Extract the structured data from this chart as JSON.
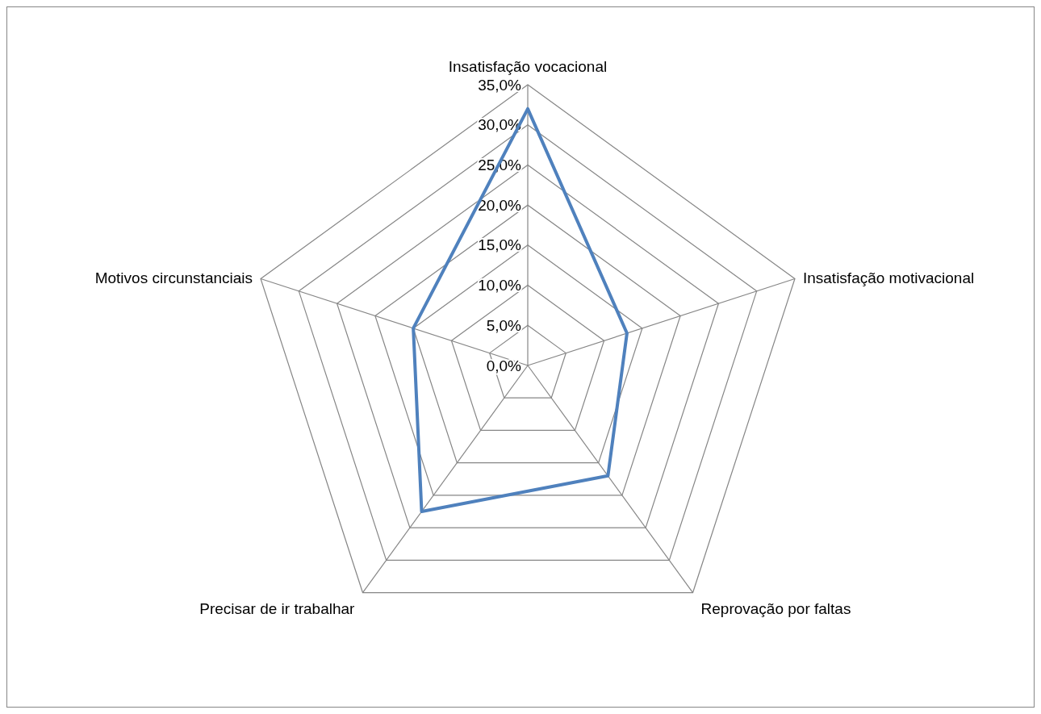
{
  "chart_data": {
    "type": "radar",
    "categories": [
      "Insatisfação vocacional",
      "Insatisfação motivacional",
      "Reprovação por faltas",
      "Precisar de ir trabalhar",
      "Motivos circunstanciais"
    ],
    "series": [
      {
        "color": "#4f81bd",
        "values": [
          32,
          13,
          17,
          22.5,
          15
        ]
      }
    ],
    "ylim": [
      0,
      35
    ],
    "yticks": [
      {
        "value": 0,
        "label": "0,0%"
      },
      {
        "value": 5,
        "label": "5,0%"
      },
      {
        "value": 10,
        "label": "10,0%"
      },
      {
        "value": 15,
        "label": "15,0%"
      },
      {
        "value": 20,
        "label": "20,0%"
      },
      {
        "value": 25,
        "label": "25,0%"
      },
      {
        "value": 30,
        "label": "30,0%"
      },
      {
        "value": 35,
        "label": "35,0%"
      }
    ],
    "grid": true,
    "marker": "none",
    "line_style": "solid"
  }
}
